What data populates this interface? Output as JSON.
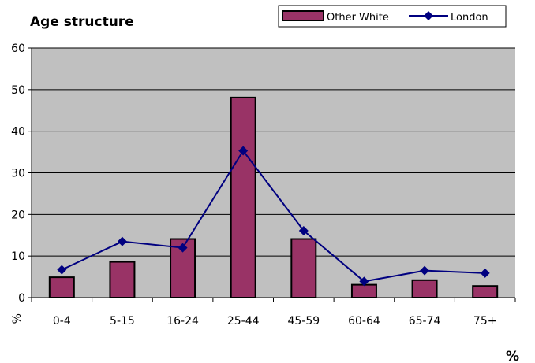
{
  "chart_data": {
    "type": "bar",
    "title": "Age structure",
    "categories": [
      "0-4",
      "5-15",
      "16-24",
      "25-44",
      "45-59",
      "60-64",
      "65-74",
      "75+"
    ],
    "series": [
      {
        "name": "Other White",
        "type": "bar",
        "values": [
          4.9,
          8.6,
          14.1,
          48.1,
          14.1,
          3.1,
          4.2,
          2.8
        ],
        "color": "#993366"
      },
      {
        "name": "London",
        "type": "line",
        "values": [
          6.7,
          13.5,
          12.0,
          35.3,
          16.1,
          3.9,
          6.5,
          5.9
        ],
        "color": "#000080"
      }
    ],
    "ylim": [
      0,
      60
    ],
    "yticks": [
      0,
      10,
      20,
      30,
      40,
      50,
      60
    ],
    "ylabel": "%",
    "corner_label": "%",
    "grid": true,
    "legend_position": "top-right",
    "plot_background": "#c0c0c0"
  }
}
